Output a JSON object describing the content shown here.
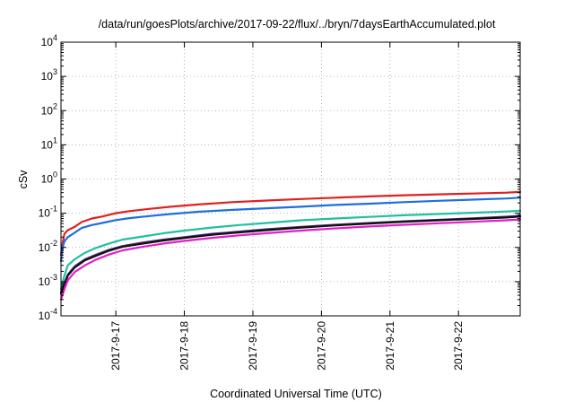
{
  "chart_data": {
    "type": "line",
    "title": "/data/run/goesPlots/archive/2017-09-22/flux/../bryn/7daysEarthAccumulated.plot",
    "xlabel": "Coordinated Universal Time (UTC)",
    "ylabel": "cSv",
    "yscale": "log",
    "ylim": [
      0.0001,
      10000
    ],
    "xlim": [
      0,
      6.7
    ],
    "grid": true,
    "yticks": [
      {
        "value": 0.0001,
        "base": "10",
        "exp": "-4"
      },
      {
        "value": 0.001,
        "base": "10",
        "exp": "-3"
      },
      {
        "value": 0.01,
        "base": "10",
        "exp": "-2"
      },
      {
        "value": 0.1,
        "base": "10",
        "exp": "-1"
      },
      {
        "value": 1,
        "base": "10",
        "exp": "0"
      },
      {
        "value": 10,
        "base": "10",
        "exp": "1"
      },
      {
        "value": 100,
        "base": "10",
        "exp": "2"
      },
      {
        "value": 1000,
        "base": "10",
        "exp": "3"
      },
      {
        "value": 10000,
        "base": "10",
        "exp": "4"
      }
    ],
    "xticks": [
      {
        "value": 0.8,
        "label": "2017-9-17"
      },
      {
        "value": 1.8,
        "label": "2017-9-18"
      },
      {
        "value": 2.8,
        "label": "2017-9-19"
      },
      {
        "value": 3.8,
        "label": "2017-9-20"
      },
      {
        "value": 4.8,
        "label": "2017-9-21"
      },
      {
        "value": 5.8,
        "label": "2017-9-22"
      }
    ],
    "series": [
      {
        "color": "#e02020",
        "x": [
          0,
          0.02,
          0.05,
          0.1,
          0.2,
          0.3,
          0.45,
          0.6,
          0.8,
          1.0,
          1.3,
          1.6,
          2.0,
          2.5,
          3.0,
          3.5,
          4.0,
          4.5,
          5.0,
          5.5,
          6.0,
          6.5,
          6.7
        ],
        "y": [
          0.006,
          0.012,
          0.025,
          0.032,
          0.04,
          0.055,
          0.07,
          0.08,
          0.1,
          0.115,
          0.135,
          0.155,
          0.18,
          0.21,
          0.235,
          0.26,
          0.285,
          0.31,
          0.335,
          0.355,
          0.375,
          0.4,
          0.42
        ]
      },
      {
        "color": "#1e6ee0",
        "x": [
          0,
          0.02,
          0.05,
          0.1,
          0.2,
          0.3,
          0.45,
          0.6,
          0.8,
          1.0,
          1.3,
          1.6,
          2.0,
          2.5,
          3.0,
          3.5,
          4.0,
          4.5,
          5.0,
          5.5,
          6.0,
          6.5,
          6.7
        ],
        "y": [
          0.004,
          0.009,
          0.015,
          0.02,
          0.027,
          0.037,
          0.045,
          0.052,
          0.063,
          0.072,
          0.083,
          0.095,
          0.11,
          0.125,
          0.14,
          0.155,
          0.175,
          0.19,
          0.21,
          0.23,
          0.25,
          0.27,
          0.285
        ]
      },
      {
        "color": "#20c0a0",
        "x": [
          0,
          0.05,
          0.1,
          0.2,
          0.35,
          0.5,
          0.7,
          0.9,
          1.2,
          1.5,
          1.8,
          2.2,
          2.6,
          3.0,
          3.5,
          4.0,
          4.5,
          5.0,
          5.5,
          6.0,
          6.5,
          6.7
        ],
        "y": [
          0.0006,
          0.0015,
          0.003,
          0.0045,
          0.007,
          0.0095,
          0.013,
          0.017,
          0.021,
          0.026,
          0.031,
          0.038,
          0.045,
          0.052,
          0.062,
          0.07,
          0.078,
          0.087,
          0.095,
          0.103,
          0.112,
          0.118
        ]
      },
      {
        "color": "#5a2d8c",
        "x": [
          0,
          0.05,
          0.1,
          0.2,
          0.35,
          0.5,
          0.7,
          0.9,
          1.2,
          1.5,
          1.8,
          2.2,
          2.6,
          3.0,
          3.5,
          4.0,
          4.5,
          5.0,
          5.5,
          6.0,
          6.5,
          6.7
        ],
        "y": [
          0.0005,
          0.0009,
          0.0016,
          0.0028,
          0.0045,
          0.006,
          0.0085,
          0.011,
          0.014,
          0.017,
          0.02,
          0.025,
          0.029,
          0.034,
          0.04,
          0.046,
          0.052,
          0.058,
          0.064,
          0.071,
          0.079,
          0.084
        ]
      },
      {
        "color": "#101010",
        "x": [
          0,
          0.05,
          0.1,
          0.2,
          0.35,
          0.5,
          0.7,
          0.9,
          1.2,
          1.5,
          1.8,
          2.2,
          2.6,
          3.0,
          3.5,
          4.0,
          4.5,
          5.0,
          5.5,
          6.0,
          6.5,
          6.7
        ],
        "y": [
          0.00045,
          0.0008,
          0.0015,
          0.0026,
          0.0042,
          0.0056,
          0.008,
          0.0105,
          0.013,
          0.016,
          0.019,
          0.0235,
          0.0275,
          0.032,
          0.038,
          0.044,
          0.05,
          0.056,
          0.062,
          0.068,
          0.075,
          0.08
        ]
      },
      {
        "color": "#e020c8",
        "x": [
          0,
          0.05,
          0.1,
          0.2,
          0.35,
          0.5,
          0.7,
          0.9,
          1.2,
          1.5,
          1.8,
          2.2,
          2.6,
          3.0,
          3.5,
          4.0,
          4.5,
          5.0,
          5.5,
          6.0,
          6.5,
          6.7
        ],
        "y": [
          0.0003,
          0.0006,
          0.0011,
          0.0019,
          0.003,
          0.0043,
          0.0062,
          0.0082,
          0.0105,
          0.013,
          0.0155,
          0.019,
          0.0225,
          0.026,
          0.031,
          0.036,
          0.041,
          0.046,
          0.051,
          0.056,
          0.062,
          0.066
        ]
      }
    ]
  }
}
